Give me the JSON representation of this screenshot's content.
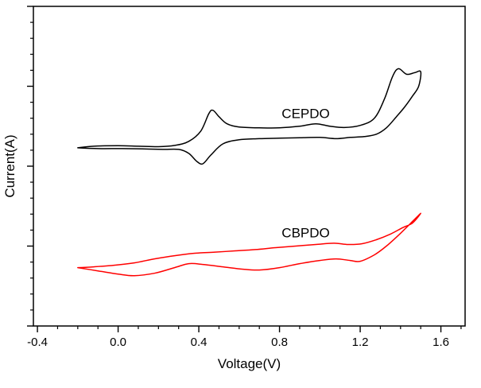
{
  "chart_data": {
    "type": "line",
    "title": "",
    "xlabel": "Voltage(V)",
    "ylabel": "Current(A)",
    "xlim": [
      -0.42,
      1.72
    ],
    "ylim": [
      -10,
      10
    ],
    "x_major_ticks": [
      -0.4,
      0.0,
      0.4,
      0.8,
      1.2,
      1.6
    ],
    "x_tick_labels": [
      "-0.4",
      "0.0",
      "0.4",
      "0.8",
      "1.2",
      "1.6"
    ],
    "x_minor_step": 0.1,
    "y_major_ticks": [
      -10,
      -5,
      0,
      5,
      10
    ],
    "y_minor_step": 1,
    "y_tick_labels": [],
    "grid": false,
    "box": true,
    "tick_direction": "out",
    "legend": "inline-annotations",
    "annotations": [
      {
        "text": "CEPDO",
        "x": 0.93,
        "y": 3.0,
        "color": "#000000"
      },
      {
        "text": "CBPDO",
        "x": 0.93,
        "y": -4.45,
        "color": "#000000"
      }
    ],
    "series": [
      {
        "name": "CEPDO",
        "color": "#000000",
        "description": "cyclic voltammogram, upper black curve, anodic peak ~0.47 V, large oxidation onset ~1.3 V, switching potential 1.5 V, cathodic dip ~0.42 V",
        "points": [
          [
            -0.2,
            1.15
          ],
          [
            -0.12,
            1.25
          ],
          [
            0.0,
            1.28
          ],
          [
            0.1,
            1.25
          ],
          [
            0.2,
            1.22
          ],
          [
            0.28,
            1.3
          ],
          [
            0.35,
            1.55
          ],
          [
            0.41,
            2.2
          ],
          [
            0.45,
            3.3
          ],
          [
            0.47,
            3.5
          ],
          [
            0.5,
            3.1
          ],
          [
            0.54,
            2.65
          ],
          [
            0.6,
            2.45
          ],
          [
            0.7,
            2.4
          ],
          [
            0.8,
            2.4
          ],
          [
            0.9,
            2.5
          ],
          [
            0.98,
            2.65
          ],
          [
            1.05,
            2.5
          ],
          [
            1.12,
            2.42
          ],
          [
            1.2,
            2.55
          ],
          [
            1.27,
            3.0
          ],
          [
            1.32,
            4.2
          ],
          [
            1.36,
            5.6
          ],
          [
            1.39,
            6.1
          ],
          [
            1.43,
            5.75
          ],
          [
            1.47,
            5.85
          ],
          [
            1.5,
            5.9
          ],
          [
            1.49,
            5.0
          ],
          [
            1.46,
            4.4
          ],
          [
            1.42,
            3.7
          ],
          [
            1.38,
            3.1
          ],
          [
            1.33,
            2.4
          ],
          [
            1.28,
            2.0
          ],
          [
            1.22,
            1.85
          ],
          [
            1.15,
            1.8
          ],
          [
            1.08,
            1.72
          ],
          [
            1.0,
            1.8
          ],
          [
            0.9,
            1.78
          ],
          [
            0.8,
            1.75
          ],
          [
            0.7,
            1.72
          ],
          [
            0.6,
            1.65
          ],
          [
            0.52,
            1.4
          ],
          [
            0.46,
            0.7
          ],
          [
            0.42,
            0.15
          ],
          [
            0.39,
            0.3
          ],
          [
            0.35,
            0.8
          ],
          [
            0.3,
            1.05
          ],
          [
            0.22,
            1.05
          ],
          [
            0.12,
            1.08
          ],
          [
            0.02,
            1.1
          ],
          [
            -0.1,
            1.1
          ],
          [
            -0.2,
            1.15
          ]
        ]
      },
      {
        "name": "CBPDO",
        "color": "#ff0000",
        "description": "cyclic voltammogram, lower red curve, broad featureless loop rising toward 1.5 V switching potential",
        "points": [
          [
            -0.2,
            -6.35
          ],
          [
            -0.1,
            -6.55
          ],
          [
            0.0,
            -6.75
          ],
          [
            0.08,
            -6.85
          ],
          [
            0.18,
            -6.7
          ],
          [
            0.28,
            -6.35
          ],
          [
            0.35,
            -6.1
          ],
          [
            0.42,
            -6.15
          ],
          [
            0.52,
            -6.3
          ],
          [
            0.62,
            -6.45
          ],
          [
            0.7,
            -6.5
          ],
          [
            0.8,
            -6.35
          ],
          [
            0.9,
            -6.1
          ],
          [
            1.0,
            -5.9
          ],
          [
            1.08,
            -5.8
          ],
          [
            1.15,
            -5.9
          ],
          [
            1.2,
            -5.95
          ],
          [
            1.27,
            -5.55
          ],
          [
            1.33,
            -5.0
          ],
          [
            1.4,
            -4.2
          ],
          [
            1.46,
            -3.45
          ],
          [
            1.5,
            -2.95
          ],
          [
            1.46,
            -3.55
          ],
          [
            1.41,
            -3.85
          ],
          [
            1.35,
            -4.25
          ],
          [
            1.28,
            -4.6
          ],
          [
            1.21,
            -4.85
          ],
          [
            1.14,
            -4.9
          ],
          [
            1.07,
            -4.82
          ],
          [
            0.98,
            -4.9
          ],
          [
            0.88,
            -5.0
          ],
          [
            0.78,
            -5.1
          ],
          [
            0.68,
            -5.22
          ],
          [
            0.58,
            -5.3
          ],
          [
            0.48,
            -5.38
          ],
          [
            0.38,
            -5.45
          ],
          [
            0.28,
            -5.6
          ],
          [
            0.18,
            -5.8
          ],
          [
            0.08,
            -6.05
          ],
          [
            -0.02,
            -6.2
          ],
          [
            -0.12,
            -6.3
          ],
          [
            -0.2,
            -6.35
          ]
        ]
      }
    ],
    "style": {
      "axis_color": "#000000",
      "background": "#ffffff",
      "line_width": 1.5
    }
  }
}
